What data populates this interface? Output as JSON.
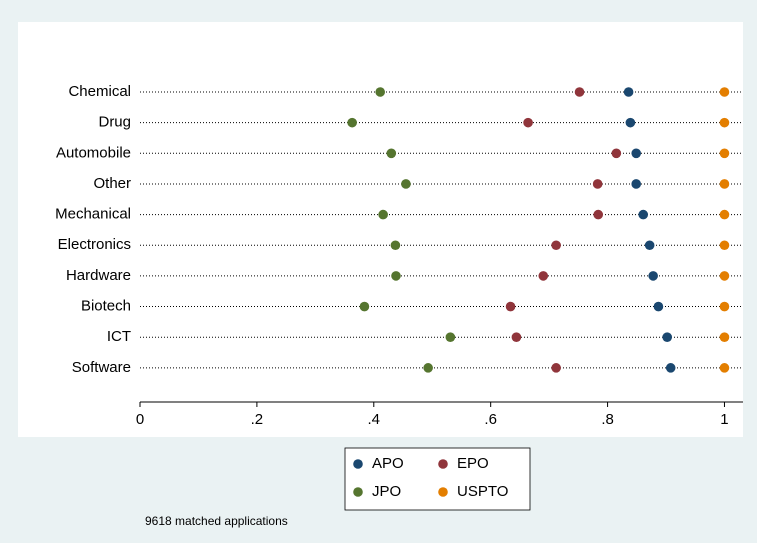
{
  "chart_data": {
    "type": "dot",
    "categories": [
      "Chemical",
      "Drug",
      "Automobile",
      "Other",
      "Mechanical",
      "Electronics",
      "Hardware",
      "Biotech",
      "ICT",
      "Software"
    ],
    "series": [
      {
        "name": "APO",
        "color": "#1a476f",
        "values": [
          0.836,
          0.839,
          0.849,
          0.849,
          0.861,
          0.872,
          0.878,
          0.887,
          0.902,
          0.908
        ]
      },
      {
        "name": "EPO",
        "color": "#90353b",
        "values": [
          0.752,
          0.664,
          0.815,
          0.783,
          0.784,
          0.712,
          0.69,
          0.634,
          0.644,
          0.712
        ]
      },
      {
        "name": "JPO",
        "color": "#55752f",
        "values": [
          0.411,
          0.363,
          0.43,
          0.455,
          0.416,
          0.437,
          0.438,
          0.384,
          0.531,
          0.493
        ]
      },
      {
        "name": "USPTO",
        "color": "#e37e00",
        "values": [
          1,
          1,
          1,
          1,
          1,
          1,
          1,
          1,
          1,
          1
        ]
      }
    ],
    "xlim": [
      0,
      1.03
    ],
    "xticks": [
      0,
      {
        "value": 0.2,
        "label": ".2"
      },
      {
        "value": 0.4,
        "label": ".4"
      },
      {
        "value": 0.6,
        "label": ".6"
      },
      {
        "value": 0.8,
        "label": ".8"
      },
      1
    ],
    "note": "9618 matched applications"
  }
}
